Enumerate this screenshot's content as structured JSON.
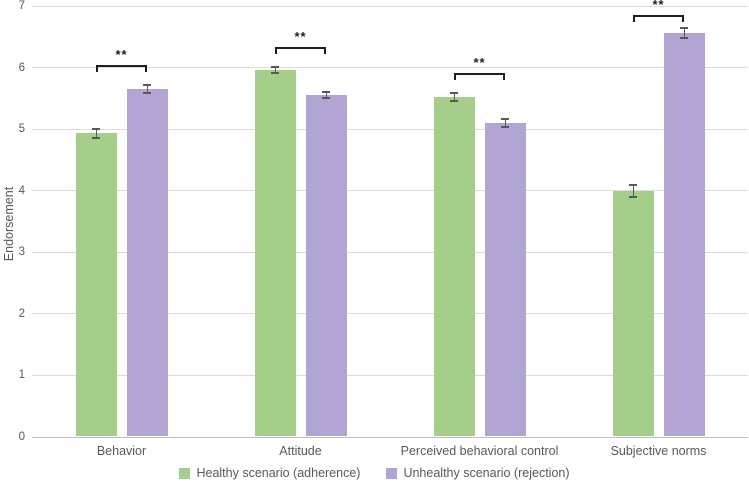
{
  "figure": {
    "background": "#ffffff",
    "text_color": "#595959",
    "gridline_color": "#dcdcdc",
    "error_bar_color": "#595959",
    "bracket_color": "#1f1f1f"
  },
  "chart_data": {
    "type": "bar",
    "title": "",
    "xlabel": "",
    "ylabel": "Endorsement",
    "ylim": [
      0,
      7
    ],
    "yticks": [
      0,
      1,
      2,
      3,
      4,
      5,
      6,
      7
    ],
    "grid": true,
    "legend_position": "bottom",
    "categories": [
      "Behavior",
      "Attitude",
      "Perceived behavioral control",
      "Subjective norms"
    ],
    "series": [
      {
        "name": "Healthy scenario (adherence)",
        "color": "#a6ce8b",
        "values": [
          4.93,
          5.96,
          5.52,
          4.0
        ],
        "errors": [
          0.07,
          0.05,
          0.06,
          0.1
        ]
      },
      {
        "name": "Unhealthy scenario (rejection)",
        "color": "#b2a4d3",
        "values": [
          5.65,
          5.55,
          5.1,
          6.56
        ],
        "errors": [
          0.07,
          0.05,
          0.07,
          0.08
        ]
      }
    ],
    "significance": [
      {
        "label": "**",
        "y": 6.04
      },
      {
        "label": "**",
        "y": 6.33
      },
      {
        "label": "**",
        "y": 5.91
      },
      {
        "label": "**",
        "y": 6.85
      }
    ]
  }
}
